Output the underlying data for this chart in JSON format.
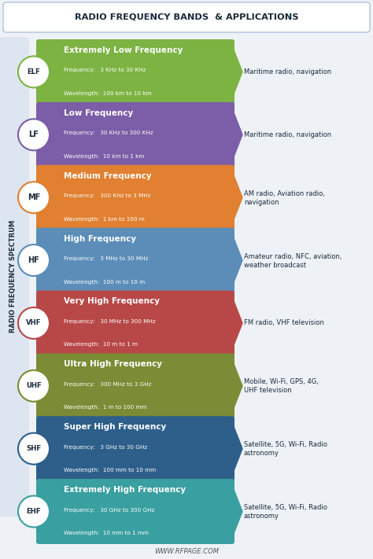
{
  "title": "RADIO FREQUENCY BANDS  & APPLICATIONS",
  "side_label": "RADIO FREQUENCY SPECTRUM",
  "footer": "WWW.RFPAGE.COM",
  "bg_color": "#eef2f7",
  "bands": [
    {
      "abbr": "ELF",
      "name": "Extremely Low Frequency",
      "freq": "3 KHz to 30 KHz",
      "wave": "100 km to 10 km",
      "color": "#7db343",
      "uses_lines": [
        "Maritime radio, navigation"
      ],
      "has_image": false
    },
    {
      "abbr": "LF",
      "name": "Low Frequency",
      "freq": "30 KHz to 300 KHz",
      "wave": "10 km to 1 km",
      "color": "#7b5ea7",
      "uses_lines": [
        "Maritime radio, navigation"
      ],
      "has_image": false
    },
    {
      "abbr": "MF",
      "name": "Medium Frequency",
      "freq": "300 KHz to 3 MHz",
      "wave": "1 km to 100 m",
      "color": "#e08030",
      "uses_lines": [
        "AM radio, Aviation radio,",
        "navigation"
      ],
      "has_image": false
    },
    {
      "abbr": "HF",
      "name": "High Frequency",
      "freq": "3 MHz to 30 MHz",
      "wave": "100 m to 10 m",
      "color": "#5b8db8",
      "uses_lines": [
        "Amateur radio, NFC, aviation,",
        "weather broadcast"
      ],
      "has_image": false
    },
    {
      "abbr": "VHF",
      "name": "Very High Frequency",
      "freq": "30 MHz to 300 MHz",
      "wave": "10 m to 1 m",
      "color": "#b84848",
      "uses_lines": [
        "FM radio, VHF television"
      ],
      "has_image": false
    },
    {
      "abbr": "UHF",
      "name": "Ultra High Frequency",
      "freq": "300 MHz to 3 GHz",
      "wave": "1 m to 100 mm",
      "color": "#7a8c35",
      "uses_lines": [
        "Mobile, Wi-Fi, GPS, 4G,",
        "UHF television"
      ],
      "has_image": false
    },
    {
      "abbr": "SHF",
      "name": "Super High Frequency",
      "freq": "3 GHz to 30 GHz",
      "wave": "100 mm to 10 mm",
      "color": "#2d5f8a",
      "uses_lines": [
        "Satellite, 5G, Wi-Fi, Radio",
        "astronomy"
      ],
      "has_image": false
    },
    {
      "abbr": "EHF",
      "name": "Extremely High Frequency",
      "freq": "30 GHz to 300 GHz",
      "wave": "10 mm to 1 mm",
      "color": "#3a9fa0",
      "uses_lines": [
        "Satellite, 5G, Wi-Fi, Radio",
        "astronomy"
      ],
      "has_image": false
    }
  ]
}
